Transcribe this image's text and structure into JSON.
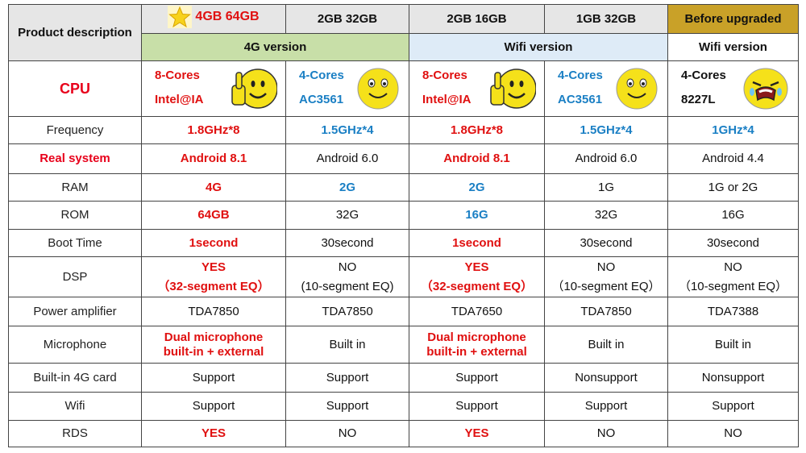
{
  "header": {
    "product_description": "Product description",
    "configs": [
      "4GB 64GB",
      "2GB 32GB",
      "2GB 16GB",
      "1GB 32GB",
      "Before upgraded"
    ],
    "versions": [
      "4G version",
      "Wifi version",
      "Wifi version"
    ]
  },
  "cpu": {
    "label": "CPU",
    "col1": {
      "line1": "8-Cores",
      "line2": "Intel@IA",
      "face": "thumbs-up-smiley-icon"
    },
    "col2": {
      "line1": "4-Cores",
      "line2": "AC3561",
      "face": "smiley-icon"
    },
    "col3": {
      "line1": "8-Cores",
      "line2": "Intel@IA",
      "face": "thumbs-up-smiley-icon"
    },
    "col4": {
      "line1": "4-Cores",
      "line2": "AC3561",
      "face": "smiley-icon"
    },
    "col5": {
      "line1": "4-Cores",
      "line2": "8227L",
      "face": "crying-face-icon"
    }
  },
  "rows": [
    {
      "label": "Frequency",
      "cells": [
        "1.8GHz*8",
        "1.5GHz*4",
        "1.8GHz*8",
        "1.5GHz*4",
        "1GHz*4"
      ]
    },
    {
      "label": "Real system",
      "cells": [
        "Android 8.1",
        "Android 6.0",
        "Android 8.1",
        "Android 6.0",
        "Android 4.4"
      ]
    },
    {
      "label": "RAM",
      "cells": [
        "4G",
        "2G",
        "2G",
        "1G",
        "1G or 2G"
      ]
    },
    {
      "label": "ROM",
      "cells": [
        "64GB",
        "32G",
        "16G",
        "32G",
        "16G"
      ]
    },
    {
      "label": "Boot Time",
      "cells": [
        "1second",
        "30second",
        "1second",
        "30second",
        "30second"
      ]
    },
    {
      "label": "DSP",
      "cells": [
        {
          "a": "YES",
          "b": "（32-segment EQ）"
        },
        {
          "a": "NO",
          "b": "(10-segment EQ)"
        },
        {
          "a": "YES",
          "b": "（32-segment EQ）"
        },
        {
          "a": "NO",
          "b": "（10-segment EQ）"
        },
        {
          "a": "NO",
          "b": "（10-segment EQ）"
        }
      ]
    },
    {
      "label": "Power amplifier",
      "cells": [
        "TDA7850",
        "TDA7850",
        "TDA7650",
        "TDA7850",
        "TDA7388"
      ]
    },
    {
      "label": "Microphone",
      "cells": [
        {
          "a": "Dual microphone",
          "b": "built-in + external"
        },
        "Built in",
        {
          "a": "Dual microphone",
          "b": "built-in + external"
        },
        "Built in",
        "Built in"
      ]
    },
    {
      "label": "Built-in 4G card",
      "cells": [
        "Support",
        "Support",
        "Support",
        "Nonsupport",
        "Nonsupport"
      ]
    },
    {
      "label": "Wifi",
      "cells": [
        "Support",
        "Support",
        "Support",
        "Support",
        "Support"
      ]
    },
    {
      "label": "RDS",
      "cells": [
        "YES",
        "NO",
        "YES",
        "NO",
        "NO"
      ]
    }
  ],
  "colors": {
    "red": "#e01010",
    "blue": "#1a7fc4",
    "green_band": "#c8dfa8",
    "blue_band": "#deebf7",
    "gold": "#c9a128",
    "smiley_yellow": "#f5e11a"
  }
}
